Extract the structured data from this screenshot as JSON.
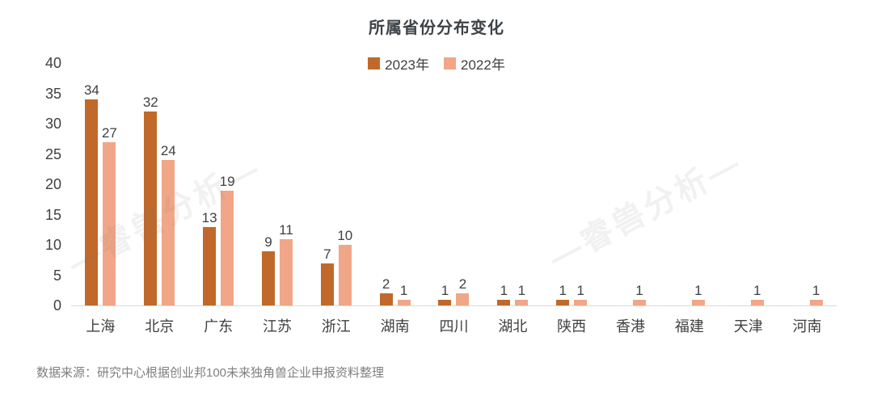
{
  "title": "所属省份分布变化",
  "legend": [
    {
      "label": "2023年",
      "color": "#c1692a"
    },
    {
      "label": "2022年",
      "color": "#f1a687"
    }
  ],
  "watermark_text": "—睿兽分析—",
  "source_note": "数据来源：研究中心根据创业邦100未来独角兽企业申报资料整理",
  "colors": {
    "series_2023": "#c1692a",
    "series_2022": "#f1a687",
    "axis_line": "#d9d9d9",
    "text": "#404040",
    "source_text": "#7f7f7f"
  },
  "chart_data": {
    "type": "bar",
    "title": "所属省份分布变化",
    "categories": [
      "上海",
      "北京",
      "广东",
      "江苏",
      "浙江",
      "湖南",
      "四川",
      "湖北",
      "陕西",
      "香港",
      "福建",
      "天津",
      "河南"
    ],
    "series": [
      {
        "name": "2023年",
        "color": "#c1692a",
        "values": [
          34,
          32,
          13,
          9,
          7,
          2,
          1,
          1,
          1,
          null,
          null,
          null,
          null
        ]
      },
      {
        "name": "2022年",
        "color": "#f1a687",
        "values": [
          27,
          24,
          19,
          11,
          10,
          1,
          2,
          1,
          1,
          1,
          1,
          1,
          1
        ]
      }
    ],
    "xlabel": "",
    "ylabel": "",
    "ylim": [
      0,
      40
    ],
    "yticks": [
      0,
      5,
      10,
      15,
      20,
      25,
      30,
      35,
      40
    ],
    "grid": false,
    "legend_position": "top",
    "data_labels": true
  }
}
